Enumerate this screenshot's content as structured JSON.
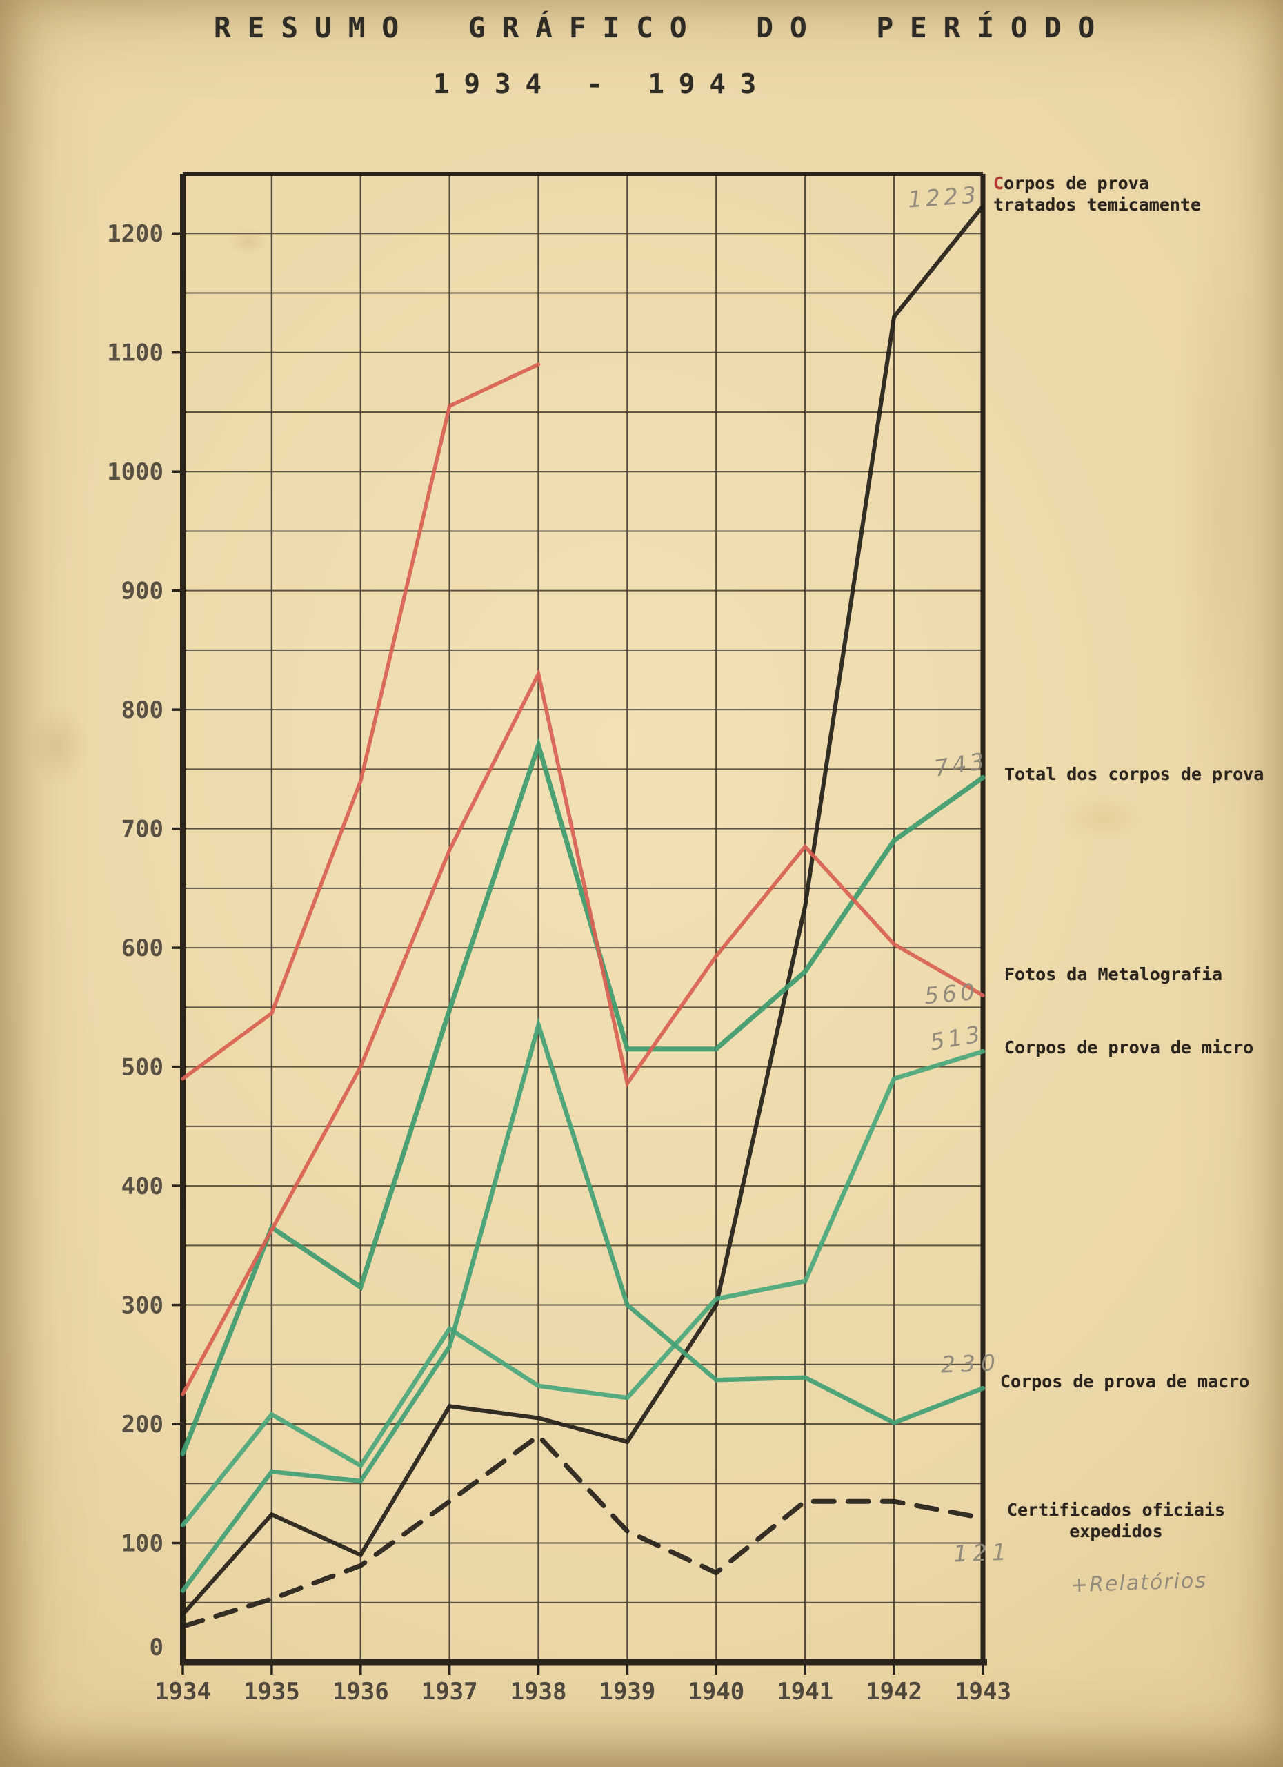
{
  "page": {
    "title_line1": "RESUMO GRÁFICO DO PERÍODO",
    "title_line2": "1934 - 1943"
  },
  "chart_data": {
    "type": "line",
    "title": "Resumo gráfico do período 1934-1943",
    "x": [
      1934,
      1935,
      1936,
      1937,
      1938,
      1939,
      1940,
      1941,
      1942,
      1943
    ],
    "x_labels": [
      "1934",
      "1935",
      "1936",
      "1937",
      "1938",
      "1939",
      "1940",
      "1941",
      "1942",
      "1943"
    ],
    "ylim": [
      0,
      1250
    ],
    "y_gridline_step": 50,
    "y_label_step": 100,
    "y_tick_labels": [
      "1200",
      "1100",
      "1000",
      "900",
      "800",
      "700",
      "600",
      "500",
      "400",
      "300",
      "200",
      "100"
    ],
    "origin_label": "0",
    "grid": true,
    "legend_position": "right-margin-annotations",
    "series": [
      {
        "id": "treated",
        "name": "Corpos de prova tratados temicamente",
        "color": "#231e18",
        "style": "solid",
        "width": 6,
        "values": [
          40,
          124,
          90,
          215,
          205,
          185,
          300,
          635,
          1130,
          1223
        ],
        "end_label": "1223"
      },
      {
        "id": "total",
        "name": "Total dos corpos de prova",
        "color": "#3e9b6f",
        "style": "solid",
        "width": 7,
        "values": [
          175,
          365,
          315,
          548,
          770,
          515,
          515,
          580,
          690,
          743
        ],
        "end_label": "743"
      },
      {
        "id": "fotos",
        "name": "Fotos da Metalografia",
        "color": "#d85f52",
        "style": "solid",
        "width": 5.5,
        "values": [
          225,
          363,
          500,
          682,
          830,
          486,
          593,
          685,
          603,
          560
        ],
        "end_label": "560"
      },
      {
        "id": "micro",
        "name": "Corpos de prova de micro",
        "color": "#4aa77c",
        "style": "solid",
        "width": 6.5,
        "values": [
          115,
          208,
          165,
          280,
          232,
          222,
          305,
          320,
          490,
          513
        ],
        "end_label": "513"
      },
      {
        "id": "macro",
        "name": "Corpos de prova de macro",
        "color": "#42a075",
        "style": "solid",
        "width": 6.5,
        "values": [
          60,
          160,
          152,
          265,
          535,
          300,
          237,
          239,
          201,
          230
        ],
        "end_label": "230"
      },
      {
        "id": "certificados",
        "name": "Certificados oficiais expedidos + Relatórios",
        "color": "#241f19",
        "style": "dashed",
        "width": 7,
        "values": [
          30,
          53,
          81,
          135,
          190,
          110,
          75,
          135,
          135,
          121
        ],
        "end_label": "121"
      },
      {
        "id": "aux_red",
        "name": "unlabeled red line (ends 1938)",
        "color": "#d85f52",
        "style": "solid",
        "width": 5.5,
        "values": [
          490,
          545,
          740,
          1055,
          1090,
          null,
          null,
          null,
          null,
          null
        ],
        "end_label": ""
      }
    ]
  },
  "legend": {
    "treated": {
      "line1": "Corpos de prova",
      "line2": "tratados temicamente",
      "pencil": "1223"
    },
    "total": {
      "line1": "Total dos corpos de prova",
      "pencil": "743"
    },
    "fotos": {
      "line1": "Fotos da Metalografia",
      "pencil": "560"
    },
    "micro": {
      "line1": "Corpos de prova de micro",
      "pencil": "513"
    },
    "macro": {
      "line1": "Corpos de prova de macro",
      "pencil": "230"
    },
    "cert": {
      "line1": "Certificados oficiais",
      "line2": "expedidos",
      "pencil": "121",
      "pencil_note": "+Relatórios"
    }
  }
}
